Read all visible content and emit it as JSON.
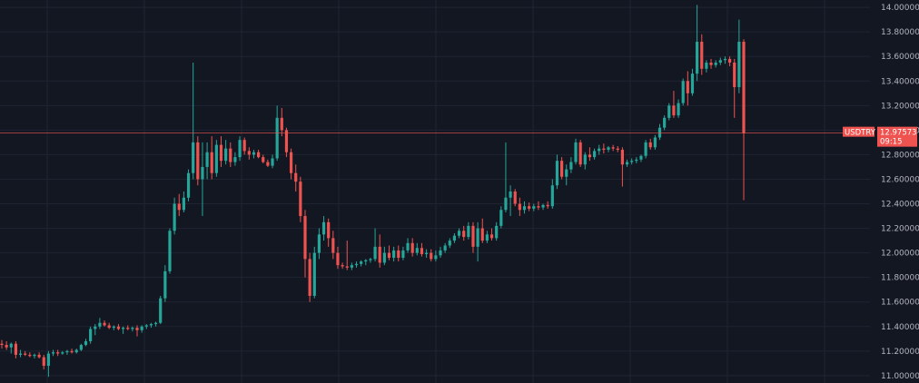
{
  "chart_data": {
    "type": "candlestick",
    "title": "",
    "xlabel": "",
    "ylabel": "",
    "ylim": [
      10.94,
      14.06
    ],
    "grid": true,
    "y_ticks": [
      "14.00000",
      "13.80000",
      "13.60000",
      "13.40000",
      "13.20000",
      "13.00000",
      "12.80000",
      "12.60000",
      "12.40000",
      "12.20000",
      "12.00000",
      "11.80000",
      "11.60000",
      "11.40000",
      "11.20000",
      "11.00000"
    ],
    "last_price": {
      "symbol": "USDTRY",
      "value": "12.97573",
      "countdown": "09:15",
      "price": 12.97573
    },
    "colors": {
      "background": "#131722",
      "grid": "#1f2433",
      "up": "#26a69a",
      "down": "#ef5350",
      "axis_text": "#b2b5be",
      "price_line": "#ef5350"
    },
    "candles": [
      {
        "o": 11.26,
        "h": 11.29,
        "l": 11.22,
        "c": 11.25
      },
      {
        "o": 11.25,
        "h": 11.28,
        "l": 11.21,
        "c": 11.23
      },
      {
        "o": 11.23,
        "h": 11.27,
        "l": 11.18,
        "c": 11.26
      },
      {
        "o": 11.26,
        "h": 11.28,
        "l": 11.14,
        "c": 11.17
      },
      {
        "o": 11.17,
        "h": 11.21,
        "l": 11.15,
        "c": 11.18
      },
      {
        "o": 11.18,
        "h": 11.2,
        "l": 11.16,
        "c": 11.17
      },
      {
        "o": 11.17,
        "h": 11.19,
        "l": 11.15,
        "c": 11.16
      },
      {
        "o": 11.16,
        "h": 11.18,
        "l": 11.14,
        "c": 11.17
      },
      {
        "o": 11.17,
        "h": 11.19,
        "l": 11.14,
        "c": 11.15
      },
      {
        "o": 11.15,
        "h": 11.17,
        "l": 11.05,
        "c": 11.08
      },
      {
        "o": 11.08,
        "h": 11.2,
        "l": 10.99,
        "c": 11.18
      },
      {
        "o": 11.18,
        "h": 11.21,
        "l": 11.16,
        "c": 11.19
      },
      {
        "o": 11.19,
        "h": 11.21,
        "l": 11.16,
        "c": 11.18
      },
      {
        "o": 11.18,
        "h": 11.2,
        "l": 11.17,
        "c": 11.19
      },
      {
        "o": 11.19,
        "h": 11.21,
        "l": 11.17,
        "c": 11.2
      },
      {
        "o": 11.2,
        "h": 11.22,
        "l": 11.18,
        "c": 11.19
      },
      {
        "o": 11.19,
        "h": 11.22,
        "l": 11.18,
        "c": 11.21
      },
      {
        "o": 11.21,
        "h": 11.26,
        "l": 11.2,
        "c": 11.25
      },
      {
        "o": 11.25,
        "h": 11.3,
        "l": 11.24,
        "c": 11.28
      },
      {
        "o": 11.28,
        "h": 11.4,
        "l": 11.26,
        "c": 11.38
      },
      {
        "o": 11.38,
        "h": 11.42,
        "l": 11.33,
        "c": 11.4
      },
      {
        "o": 11.4,
        "h": 11.47,
        "l": 11.38,
        "c": 11.43
      },
      {
        "o": 11.43,
        "h": 11.45,
        "l": 11.4,
        "c": 11.41
      },
      {
        "o": 11.41,
        "h": 11.43,
        "l": 11.38,
        "c": 11.39
      },
      {
        "o": 11.39,
        "h": 11.41,
        "l": 11.37,
        "c": 11.4
      },
      {
        "o": 11.4,
        "h": 11.42,
        "l": 11.37,
        "c": 11.38
      },
      {
        "o": 11.38,
        "h": 11.4,
        "l": 11.34,
        "c": 11.39
      },
      {
        "o": 11.39,
        "h": 11.41,
        "l": 11.37,
        "c": 11.38
      },
      {
        "o": 11.38,
        "h": 11.4,
        "l": 11.36,
        "c": 11.39
      },
      {
        "o": 11.39,
        "h": 11.41,
        "l": 11.32,
        "c": 11.37
      },
      {
        "o": 11.37,
        "h": 11.41,
        "l": 11.35,
        "c": 11.4
      },
      {
        "o": 11.4,
        "h": 11.42,
        "l": 11.38,
        "c": 11.41
      },
      {
        "o": 11.41,
        "h": 11.43,
        "l": 11.39,
        "c": 11.42
      },
      {
        "o": 11.42,
        "h": 11.44,
        "l": 11.4,
        "c": 11.43
      },
      {
        "o": 11.43,
        "h": 11.65,
        "l": 11.42,
        "c": 11.63
      },
      {
        "o": 11.63,
        "h": 11.9,
        "l": 11.6,
        "c": 11.85
      },
      {
        "o": 11.85,
        "h": 12.2,
        "l": 11.83,
        "c": 12.18
      },
      {
        "o": 12.18,
        "h": 12.45,
        "l": 12.15,
        "c": 12.4
      },
      {
        "o": 12.4,
        "h": 12.48,
        "l": 12.3,
        "c": 12.35
      },
      {
        "o": 12.35,
        "h": 12.5,
        "l": 12.33,
        "c": 12.45
      },
      {
        "o": 12.45,
        "h": 12.68,
        "l": 12.42,
        "c": 12.65
      },
      {
        "o": 12.65,
        "h": 13.55,
        "l": 12.6,
        "c": 12.9
      },
      {
        "o": 12.9,
        "h": 12.95,
        "l": 12.55,
        "c": 12.6
      },
      {
        "o": 12.6,
        "h": 12.9,
        "l": 12.3,
        "c": 12.7
      },
      {
        "o": 12.7,
        "h": 12.9,
        "l": 12.6,
        "c": 12.82
      },
      {
        "o": 12.82,
        "h": 12.95,
        "l": 12.6,
        "c": 12.65
      },
      {
        "o": 12.65,
        "h": 12.92,
        "l": 12.62,
        "c": 12.88
      },
      {
        "o": 12.88,
        "h": 12.95,
        "l": 12.7,
        "c": 12.75
      },
      {
        "o": 12.75,
        "h": 12.92,
        "l": 12.72,
        "c": 12.85
      },
      {
        "o": 12.85,
        "h": 12.9,
        "l": 12.7,
        "c": 12.74
      },
      {
        "o": 12.74,
        "h": 12.82,
        "l": 12.71,
        "c": 12.78
      },
      {
        "o": 12.78,
        "h": 12.95,
        "l": 12.75,
        "c": 12.92
      },
      {
        "o": 12.92,
        "h": 12.94,
        "l": 12.8,
        "c": 12.83
      },
      {
        "o": 12.83,
        "h": 12.86,
        "l": 12.76,
        "c": 12.8
      },
      {
        "o": 12.8,
        "h": 12.84,
        "l": 12.77,
        "c": 12.82
      },
      {
        "o": 12.82,
        "h": 12.84,
        "l": 12.77,
        "c": 12.78
      },
      {
        "o": 12.78,
        "h": 12.8,
        "l": 12.73,
        "c": 12.74
      },
      {
        "o": 12.74,
        "h": 12.76,
        "l": 12.7,
        "c": 12.71
      },
      {
        "o": 12.71,
        "h": 12.8,
        "l": 12.69,
        "c": 12.77
      },
      {
        "o": 12.77,
        "h": 13.2,
        "l": 12.75,
        "c": 13.1
      },
      {
        "o": 13.1,
        "h": 13.18,
        "l": 12.95,
        "c": 13.0
      },
      {
        "o": 13.0,
        "h": 13.02,
        "l": 12.78,
        "c": 12.82
      },
      {
        "o": 12.82,
        "h": 12.85,
        "l": 12.6,
        "c": 12.65
      },
      {
        "o": 12.65,
        "h": 12.72,
        "l": 12.5,
        "c": 12.58
      },
      {
        "o": 12.58,
        "h": 12.62,
        "l": 12.25,
        "c": 12.3
      },
      {
        "o": 12.3,
        "h": 12.35,
        "l": 11.8,
        "c": 11.95
      },
      {
        "o": 11.95,
        "h": 12.0,
        "l": 11.6,
        "c": 11.65
      },
      {
        "o": 11.65,
        "h": 12.05,
        "l": 11.63,
        "c": 12.0
      },
      {
        "o": 12.0,
        "h": 12.2,
        "l": 11.95,
        "c": 12.15
      },
      {
        "o": 12.15,
        "h": 12.3,
        "l": 12.1,
        "c": 12.25
      },
      {
        "o": 12.25,
        "h": 12.28,
        "l": 12.05,
        "c": 12.12
      },
      {
        "o": 12.12,
        "h": 12.18,
        "l": 11.95,
        "c": 12.0
      },
      {
        "o": 12.0,
        "h": 12.05,
        "l": 11.87,
        "c": 11.9
      },
      {
        "o": 11.9,
        "h": 11.92,
        "l": 11.87,
        "c": 11.89
      },
      {
        "o": 11.89,
        "h": 12.1,
        "l": 11.86,
        "c": 11.88
      },
      {
        "o": 11.88,
        "h": 11.92,
        "l": 11.86,
        "c": 11.9
      },
      {
        "o": 11.9,
        "h": 11.93,
        "l": 11.88,
        "c": 11.91
      },
      {
        "o": 11.91,
        "h": 11.94,
        "l": 11.89,
        "c": 11.93
      },
      {
        "o": 11.93,
        "h": 11.95,
        "l": 11.9,
        "c": 11.94
      },
      {
        "o": 11.94,
        "h": 11.96,
        "l": 11.92,
        "c": 11.95
      },
      {
        "o": 11.95,
        "h": 12.2,
        "l": 11.93,
        "c": 12.05
      },
      {
        "o": 12.05,
        "h": 12.15,
        "l": 11.88,
        "c": 11.92
      },
      {
        "o": 11.92,
        "h": 12.05,
        "l": 11.9,
        "c": 12.0
      },
      {
        "o": 12.0,
        "h": 12.06,
        "l": 11.94,
        "c": 11.96
      },
      {
        "o": 11.96,
        "h": 12.05,
        "l": 11.93,
        "c": 12.02
      },
      {
        "o": 12.02,
        "h": 12.06,
        "l": 11.93,
        "c": 11.96
      },
      {
        "o": 11.96,
        "h": 12.05,
        "l": 11.94,
        "c": 12.02
      },
      {
        "o": 12.02,
        "h": 12.12,
        "l": 12.0,
        "c": 12.08
      },
      {
        "o": 12.08,
        "h": 12.12,
        "l": 11.97,
        "c": 12.0
      },
      {
        "o": 12.0,
        "h": 12.08,
        "l": 11.98,
        "c": 12.04
      },
      {
        "o": 12.04,
        "h": 12.08,
        "l": 11.97,
        "c": 11.99
      },
      {
        "o": 11.99,
        "h": 12.03,
        "l": 11.96,
        "c": 12.0
      },
      {
        "o": 12.0,
        "h": 12.03,
        "l": 11.93,
        "c": 11.95
      },
      {
        "o": 11.95,
        "h": 12.02,
        "l": 11.93,
        "c": 11.98
      },
      {
        "o": 11.98,
        "h": 12.05,
        "l": 11.96,
        "c": 12.02
      },
      {
        "o": 12.02,
        "h": 12.08,
        "l": 12.0,
        "c": 12.06
      },
      {
        "o": 12.06,
        "h": 12.12,
        "l": 12.04,
        "c": 12.1
      },
      {
        "o": 12.1,
        "h": 12.16,
        "l": 12.08,
        "c": 12.14
      },
      {
        "o": 12.14,
        "h": 12.2,
        "l": 12.12,
        "c": 12.18
      },
      {
        "o": 12.18,
        "h": 12.22,
        "l": 12.1,
        "c": 12.13
      },
      {
        "o": 12.13,
        "h": 12.25,
        "l": 12.11,
        "c": 12.22
      },
      {
        "o": 12.22,
        "h": 12.25,
        "l": 12.0,
        "c": 12.05
      },
      {
        "o": 12.05,
        "h": 12.25,
        "l": 11.93,
        "c": 12.2
      },
      {
        "o": 12.2,
        "h": 12.28,
        "l": 12.08,
        "c": 12.1
      },
      {
        "o": 12.1,
        "h": 12.18,
        "l": 12.08,
        "c": 12.15
      },
      {
        "o": 12.15,
        "h": 12.2,
        "l": 12.1,
        "c": 12.12
      },
      {
        "o": 12.12,
        "h": 12.25,
        "l": 12.1,
        "c": 12.22
      },
      {
        "o": 12.22,
        "h": 12.38,
        "l": 12.2,
        "c": 12.35
      },
      {
        "o": 12.35,
        "h": 12.9,
        "l": 12.33,
        "c": 12.45
      },
      {
        "o": 12.45,
        "h": 12.55,
        "l": 12.3,
        "c": 12.5
      },
      {
        "o": 12.5,
        "h": 12.52,
        "l": 12.38,
        "c": 12.4
      },
      {
        "o": 12.4,
        "h": 12.45,
        "l": 12.3,
        "c": 12.35
      },
      {
        "o": 12.35,
        "h": 12.42,
        "l": 12.32,
        "c": 12.38
      },
      {
        "o": 12.38,
        "h": 12.41,
        "l": 12.34,
        "c": 12.36
      },
      {
        "o": 12.36,
        "h": 12.4,
        "l": 12.34,
        "c": 12.38
      },
      {
        "o": 12.38,
        "h": 12.42,
        "l": 12.35,
        "c": 12.37
      },
      {
        "o": 12.37,
        "h": 12.4,
        "l": 12.35,
        "c": 12.39
      },
      {
        "o": 12.39,
        "h": 12.42,
        "l": 12.36,
        "c": 12.38
      },
      {
        "o": 12.38,
        "h": 12.6,
        "l": 12.36,
        "c": 12.55
      },
      {
        "o": 12.55,
        "h": 12.8,
        "l": 12.52,
        "c": 12.75
      },
      {
        "o": 12.75,
        "h": 12.78,
        "l": 12.6,
        "c": 12.62
      },
      {
        "o": 12.62,
        "h": 12.72,
        "l": 12.55,
        "c": 12.68
      },
      {
        "o": 12.68,
        "h": 12.78,
        "l": 12.65,
        "c": 12.74
      },
      {
        "o": 12.74,
        "h": 12.93,
        "l": 12.72,
        "c": 12.9
      },
      {
        "o": 12.9,
        "h": 12.92,
        "l": 12.7,
        "c": 12.72
      },
      {
        "o": 12.72,
        "h": 12.82,
        "l": 12.68,
        "c": 12.8
      },
      {
        "o": 12.8,
        "h": 12.86,
        "l": 12.75,
        "c": 12.78
      },
      {
        "o": 12.78,
        "h": 12.85,
        "l": 12.76,
        "c": 12.83
      },
      {
        "o": 12.83,
        "h": 12.88,
        "l": 12.8,
        "c": 12.85
      },
      {
        "o": 12.85,
        "h": 12.89,
        "l": 12.81,
        "c": 12.84
      },
      {
        "o": 12.84,
        "h": 12.87,
        "l": 12.82,
        "c": 12.86
      },
      {
        "o": 12.86,
        "h": 12.88,
        "l": 12.83,
        "c": 12.85
      },
      {
        "o": 12.85,
        "h": 12.87,
        "l": 12.82,
        "c": 12.84
      },
      {
        "o": 12.84,
        "h": 12.86,
        "l": 12.54,
        "c": 12.72
      },
      {
        "o": 12.72,
        "h": 12.76,
        "l": 12.7,
        "c": 12.74
      },
      {
        "o": 12.74,
        "h": 12.77,
        "l": 12.72,
        "c": 12.75
      },
      {
        "o": 12.75,
        "h": 12.78,
        "l": 12.73,
        "c": 12.76
      },
      {
        "o": 12.76,
        "h": 12.8,
        "l": 12.74,
        "c": 12.79
      },
      {
        "o": 12.79,
        "h": 12.92,
        "l": 12.77,
        "c": 12.9
      },
      {
        "o": 12.9,
        "h": 12.93,
        "l": 12.84,
        "c": 12.86
      },
      {
        "o": 12.86,
        "h": 12.96,
        "l": 12.84,
        "c": 12.94
      },
      {
        "o": 12.94,
        "h": 13.05,
        "l": 12.92,
        "c": 13.02
      },
      {
        "o": 13.02,
        "h": 13.12,
        "l": 13.0,
        "c": 13.1
      },
      {
        "o": 13.1,
        "h": 13.22,
        "l": 13.08,
        "c": 13.2
      },
      {
        "o": 13.2,
        "h": 13.32,
        "l": 13.1,
        "c": 13.12
      },
      {
        "o": 13.12,
        "h": 13.25,
        "l": 13.1,
        "c": 13.22
      },
      {
        "o": 13.22,
        "h": 13.42,
        "l": 13.2,
        "c": 13.4
      },
      {
        "o": 13.4,
        "h": 13.48,
        "l": 13.2,
        "c": 13.3
      },
      {
        "o": 13.3,
        "h": 13.5,
        "l": 13.28,
        "c": 13.46
      },
      {
        "o": 13.46,
        "h": 14.02,
        "l": 13.4,
        "c": 13.72
      },
      {
        "o": 13.72,
        "h": 13.78,
        "l": 13.45,
        "c": 13.5
      },
      {
        "o": 13.5,
        "h": 13.57,
        "l": 13.47,
        "c": 13.55
      },
      {
        "o": 13.55,
        "h": 13.58,
        "l": 13.5,
        "c": 13.53
      },
      {
        "o": 13.53,
        "h": 13.57,
        "l": 13.51,
        "c": 13.55
      },
      {
        "o": 13.55,
        "h": 13.59,
        "l": 13.53,
        "c": 13.57
      },
      {
        "o": 13.57,
        "h": 13.6,
        "l": 13.54,
        "c": 13.58
      },
      {
        "o": 13.58,
        "h": 13.6,
        "l": 13.52,
        "c": 13.55
      },
      {
        "o": 13.55,
        "h": 13.58,
        "l": 13.1,
        "c": 13.35
      },
      {
        "o": 13.35,
        "h": 13.9,
        "l": 13.3,
        "c": 13.72
      },
      {
        "o": 13.72,
        "h": 13.74,
        "l": 12.43,
        "c": 12.97573
      }
    ]
  }
}
